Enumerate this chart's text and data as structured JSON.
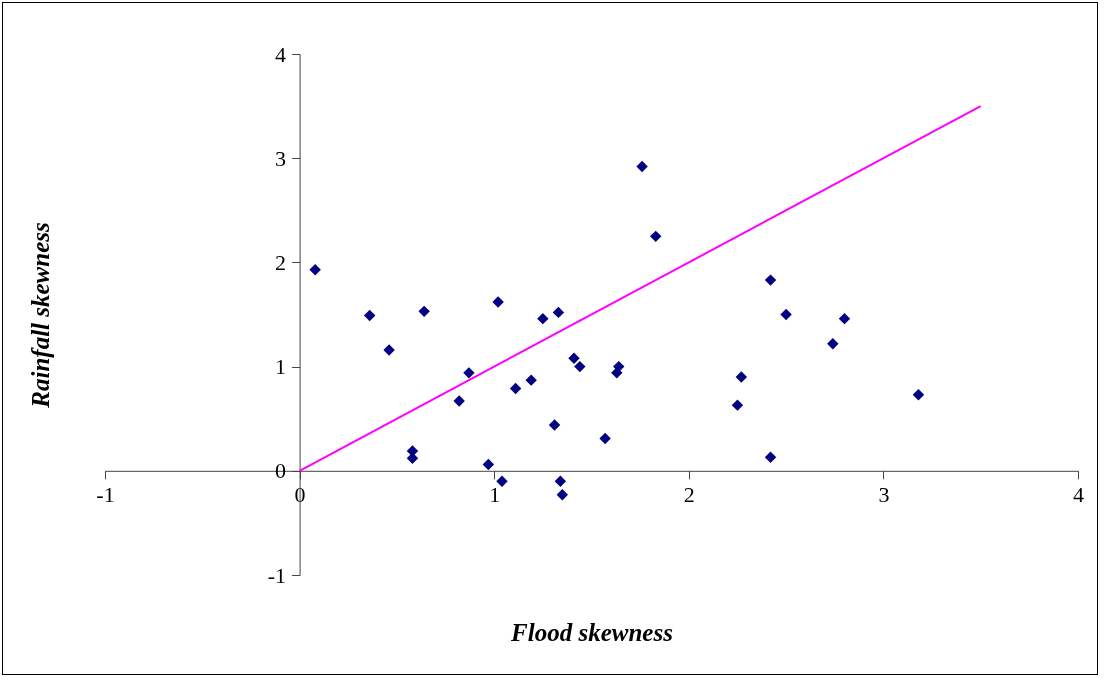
{
  "chart_data": {
    "type": "scatter",
    "xlabel": "Flood skewness",
    "ylabel": "Rainfall skewness",
    "xlim": [
      -1,
      4
    ],
    "ylim": [
      -1,
      4
    ],
    "xticks": [
      -1,
      0,
      1,
      2,
      3,
      4
    ],
    "yticks": [
      -1,
      0,
      1,
      2,
      3,
      4
    ],
    "grid": false,
    "marker": "diamond",
    "series": [
      {
        "color": "#000080",
        "x": [
          0.08,
          0.36,
          0.46,
          0.64,
          0.58,
          0.58,
          0.82,
          0.87,
          0.97,
          1.04,
          1.02,
          1.11,
          1.19,
          1.25,
          1.31,
          1.33,
          1.34,
          1.35,
          1.41,
          1.44,
          1.57,
          1.63,
          1.64,
          1.76,
          1.83,
          2.25,
          2.27,
          2.42,
          2.42,
          2.5,
          2.74,
          2.8,
          3.18
        ],
        "values": [
          1.93,
          1.49,
          1.16,
          1.53,
          0.19,
          0.12,
          0.67,
          0.94,
          0.06,
          -0.1,
          1.62,
          0.79,
          0.87,
          1.46,
          0.44,
          1.52,
          -0.1,
          -0.23,
          1.08,
          1.0,
          0.31,
          0.94,
          1.0,
          2.92,
          2.25,
          0.63,
          0.9,
          1.83,
          0.13,
          1.5,
          1.22,
          1.46,
          0.73
        ]
      },
      {
        "type": "line",
        "marker": "none",
        "color": "#ff00ff",
        "x": [
          0,
          3.5
        ],
        "values": [
          0,
          3.5
        ]
      }
    ]
  }
}
